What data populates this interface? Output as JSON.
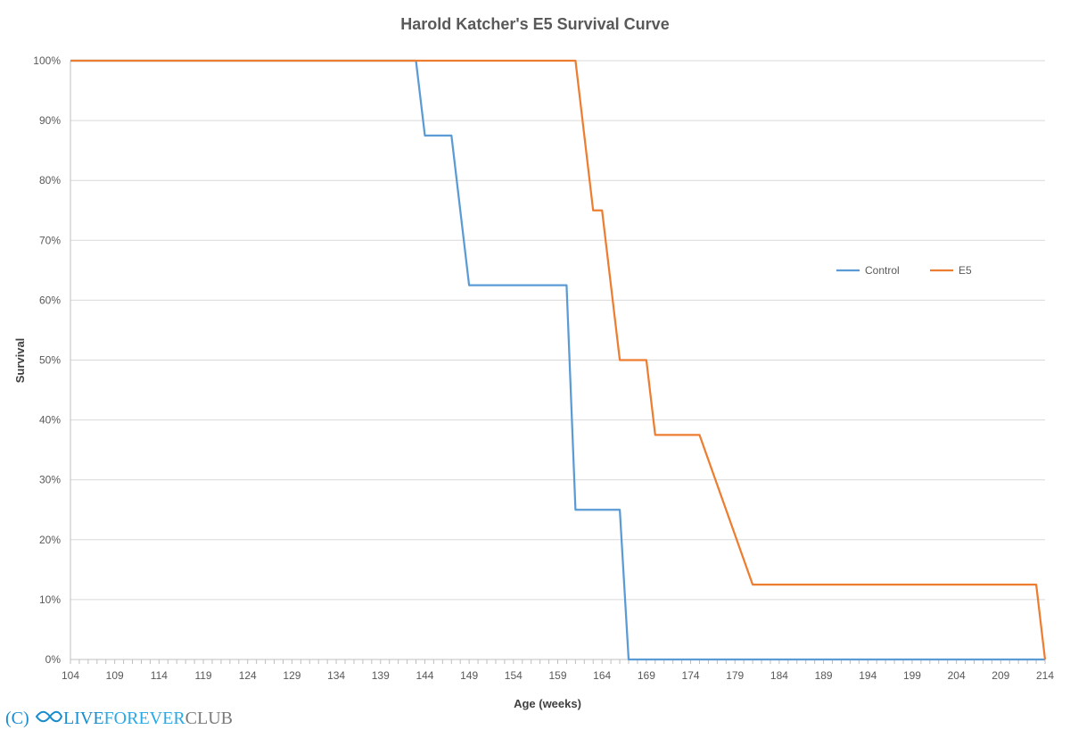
{
  "chart_data": {
    "type": "line",
    "title": "Harold Katcher's E5 Survival Curve",
    "xlabel": "Age (weeks)",
    "ylabel": "Survival",
    "xlim": [
      104,
      214
    ],
    "ylim": [
      0,
      100
    ],
    "x_ticks": [
      "104",
      "109",
      "114",
      "119",
      "124",
      "129",
      "134",
      "139",
      "144",
      "149",
      "154",
      "159",
      "164",
      "169",
      "174",
      "179",
      "184",
      "189",
      "194",
      "199",
      "204",
      "209",
      "214"
    ],
    "y_ticks": [
      "0%",
      "10%",
      "20%",
      "30%",
      "40%",
      "50%",
      "60%",
      "70%",
      "80%",
      "90%",
      "100%"
    ],
    "grid": "horizontal",
    "legend_position": "right",
    "series": [
      {
        "name": "Control",
        "color": "#5b9bd5",
        "x": [
          104,
          143,
          144,
          147,
          149,
          160,
          161,
          166,
          167,
          214
        ],
        "y": [
          100,
          100,
          87.5,
          87.5,
          62.5,
          62.5,
          25,
          25,
          0,
          0
        ]
      },
      {
        "name": "E5",
        "color": "#ed7d31",
        "x": [
          104,
          161,
          163,
          164,
          166,
          169,
          170,
          175,
          181,
          213,
          214
        ],
        "y": [
          100,
          100,
          75,
          75,
          50,
          50,
          37.5,
          37.5,
          12.5,
          12.5,
          0
        ]
      }
    ]
  },
  "watermark": {
    "prefix": "(C)",
    "brand_live": "LIVE",
    "brand_forever": "FOREVER",
    "brand_club": "CLUB",
    "icon": "infinity-icon"
  }
}
